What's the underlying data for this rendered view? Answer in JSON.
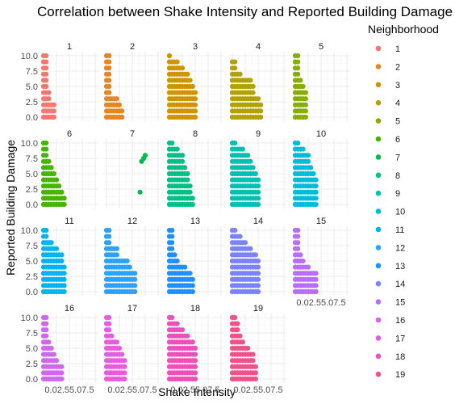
{
  "chart_data": {
    "type": "scatter",
    "title": "Correlation between Shake Intensity and Reported Building Damage",
    "xlabel": "Shake Intensity",
    "ylabel": "Reported Building Damage",
    "xlim": [
      0,
      10
    ],
    "ylim": [
      0,
      10
    ],
    "x_ticks": [
      "0.0",
      "2.5",
      "5.0",
      "7.5"
    ],
    "y_ticks": [
      "0.0",
      "2.5",
      "5.0",
      "7.5",
      "10.0"
    ],
    "facet_by": "Neighborhood",
    "legend": {
      "title": "Neighborhood",
      "position": "right",
      "items": [
        {
          "label": "1",
          "color": "#F8766D"
        },
        {
          "label": "2",
          "color": "#E7851E"
        },
        {
          "label": "3",
          "color": "#D09400"
        },
        {
          "label": "4",
          "color": "#B2A100"
        },
        {
          "label": "5",
          "color": "#89AC00"
        },
        {
          "label": "6",
          "color": "#45B500"
        },
        {
          "label": "7",
          "color": "#00BC51"
        },
        {
          "label": "8",
          "color": "#00C087"
        },
        {
          "label": "9",
          "color": "#00C0B2"
        },
        {
          "label": "10",
          "color": "#00BCD6"
        },
        {
          "label": "11",
          "color": "#00B3F2"
        },
        {
          "label": "12",
          "color": "#29A3FF"
        },
        {
          "label": "13",
          "color": "#1E90FF"
        },
        {
          "label": "14",
          "color": "#7B82FF"
        },
        {
          "label": "15",
          "color": "#B76EFF"
        },
        {
          "label": "16",
          "color": "#D166F2"
        },
        {
          "label": "17",
          "color": "#E85BE0"
        },
        {
          "label": "18",
          "color": "#EE4FB8"
        },
        {
          "label": "19",
          "color": "#F2508A"
        }
      ]
    },
    "panels": [
      {
        "label": "1",
        "shape": [
          [
            0,
            10
          ],
          [
            1,
            10
          ],
          [
            2,
            4
          ],
          [
            3,
            2
          ],
          [
            4,
            2
          ]
        ]
      },
      {
        "label": "2",
        "shape": [
          [
            0,
            10
          ],
          [
            1,
            10
          ],
          [
            2,
            3
          ],
          [
            3,
            3
          ],
          [
            4,
            3
          ],
          [
            5,
            2
          ],
          [
            6,
            1
          ]
        ]
      },
      {
        "label": "3",
        "shape": [
          [
            0,
            10
          ],
          [
            1,
            9
          ],
          [
            2,
            9
          ],
          [
            3,
            9
          ],
          [
            4,
            8
          ],
          [
            5,
            8
          ],
          [
            6,
            7
          ],
          [
            7,
            7
          ],
          [
            8,
            6
          ],
          [
            9,
            5
          ],
          [
            10,
            4
          ]
        ]
      },
      {
        "label": "4",
        "shape": [
          [
            0,
            9
          ],
          [
            1,
            9
          ],
          [
            2,
            7
          ],
          [
            3,
            7
          ],
          [
            4,
            6
          ],
          [
            5,
            6
          ],
          [
            6,
            6
          ],
          [
            7,
            6
          ],
          [
            8,
            5
          ],
          [
            9,
            3
          ],
          [
            10,
            3
          ],
          [
            11,
            2
          ]
        ]
      },
      {
        "label": "5",
        "shape": [
          [
            0,
            10
          ],
          [
            1,
            10
          ],
          [
            2,
            6
          ],
          [
            3,
            5
          ],
          [
            4,
            4
          ]
        ]
      },
      {
        "label": "6",
        "shape": [
          [
            0,
            10
          ],
          [
            1,
            10
          ],
          [
            2,
            7
          ],
          [
            3,
            6
          ],
          [
            4,
            5
          ],
          [
            5,
            4
          ],
          [
            6,
            3
          ],
          [
            7,
            2
          ],
          [
            8,
            1
          ]
        ]
      },
      {
        "label": "7",
        "points": [
          [
            6.5,
            2
          ],
          [
            6.8,
            7
          ],
          [
            7.2,
            7.5
          ],
          [
            7.5,
            8
          ]
        ]
      },
      {
        "label": "8",
        "shape": [
          [
            0,
            10
          ],
          [
            1,
            10
          ],
          [
            2,
            9
          ],
          [
            3,
            9
          ],
          [
            4,
            8
          ],
          [
            5,
            8
          ],
          [
            6,
            6
          ],
          [
            7,
            5
          ],
          [
            8,
            3
          ],
          [
            9,
            1
          ]
        ]
      },
      {
        "label": "9",
        "shape": [
          [
            0,
            10
          ],
          [
            1,
            10
          ],
          [
            2,
            9
          ],
          [
            3,
            9
          ],
          [
            4,
            9
          ],
          [
            5,
            8
          ],
          [
            6,
            8
          ],
          [
            7,
            7
          ],
          [
            8,
            6
          ],
          [
            9,
            5
          ],
          [
            10,
            4
          ]
        ]
      },
      {
        "label": "10",
        "shape": [
          [
            0,
            10
          ],
          [
            1,
            10
          ],
          [
            2,
            9
          ],
          [
            3,
            9
          ],
          [
            4,
            8
          ],
          [
            5,
            8
          ],
          [
            6,
            6
          ],
          [
            7,
            5
          ],
          [
            8,
            4
          ]
        ]
      },
      {
        "label": "11",
        "shape": [
          [
            0,
            10
          ],
          [
            1,
            10
          ],
          [
            2,
            8
          ],
          [
            3,
            8
          ],
          [
            4,
            7
          ],
          [
            5,
            7
          ],
          [
            6,
            6
          ],
          [
            7,
            6
          ],
          [
            8,
            4
          ]
        ]
      },
      {
        "label": "12",
        "shape": [
          [
            0,
            10
          ],
          [
            1,
            10
          ],
          [
            2,
            7
          ],
          [
            3,
            7
          ],
          [
            4,
            7
          ],
          [
            5,
            5
          ],
          [
            6,
            5
          ],
          [
            7,
            5
          ],
          [
            8,
            5
          ],
          [
            9,
            4
          ],
          [
            10,
            3
          ],
          [
            11,
            3
          ]
        ]
      },
      {
        "label": "13",
        "shape": [
          [
            0,
            10
          ],
          [
            1,
            10
          ],
          [
            2,
            6
          ],
          [
            3,
            5
          ],
          [
            4,
            4
          ],
          [
            5,
            4
          ],
          [
            6,
            4
          ],
          [
            7,
            3
          ],
          [
            8,
            3
          ],
          [
            9,
            2
          ]
        ]
      },
      {
        "label": "14",
        "shape": [
          [
            0,
            10
          ],
          [
            1,
            10
          ],
          [
            2,
            9
          ],
          [
            3,
            9
          ],
          [
            4,
            8
          ],
          [
            5,
            8
          ],
          [
            6,
            7
          ],
          [
            7,
            7
          ],
          [
            8,
            6
          ],
          [
            9,
            6
          ],
          [
            10,
            5
          ]
        ]
      },
      {
        "label": "15",
        "shape": [
          [
            0,
            10
          ],
          [
            1,
            10
          ],
          [
            2,
            6
          ],
          [
            3,
            5
          ],
          [
            4,
            4
          ],
          [
            5,
            4
          ],
          [
            6,
            3
          ],
          [
            7,
            3
          ],
          [
            8,
            3
          ]
        ]
      },
      {
        "label": "16",
        "shape": [
          [
            0,
            10
          ],
          [
            1,
            10
          ],
          [
            2,
            6
          ],
          [
            3,
            5
          ],
          [
            4,
            4
          ],
          [
            5,
            3
          ],
          [
            6,
            2
          ],
          [
            7,
            2
          ]
        ]
      },
      {
        "label": "17",
        "shape": [
          [
            0,
            10
          ],
          [
            1,
            10
          ],
          [
            2,
            7
          ],
          [
            3,
            6
          ],
          [
            4,
            6
          ],
          [
            5,
            5
          ],
          [
            6,
            4
          ],
          [
            7,
            3
          ]
        ]
      },
      {
        "label": "18",
        "shape": [
          [
            0,
            10
          ],
          [
            1,
            10
          ],
          [
            2,
            9
          ],
          [
            3,
            9
          ],
          [
            4,
            8
          ],
          [
            5,
            8
          ],
          [
            6,
            7
          ],
          [
            7,
            7
          ],
          [
            8,
            6
          ],
          [
            9,
            6
          ],
          [
            10,
            5
          ]
        ]
      },
      {
        "label": "19",
        "shape": [
          [
            0,
            10
          ],
          [
            1,
            10
          ],
          [
            2,
            9
          ],
          [
            3,
            7
          ],
          [
            4,
            6
          ],
          [
            5,
            5
          ],
          [
            6,
            5
          ],
          [
            7,
            4
          ],
          [
            8,
            4
          ],
          [
            9,
            2
          ]
        ]
      }
    ]
  }
}
